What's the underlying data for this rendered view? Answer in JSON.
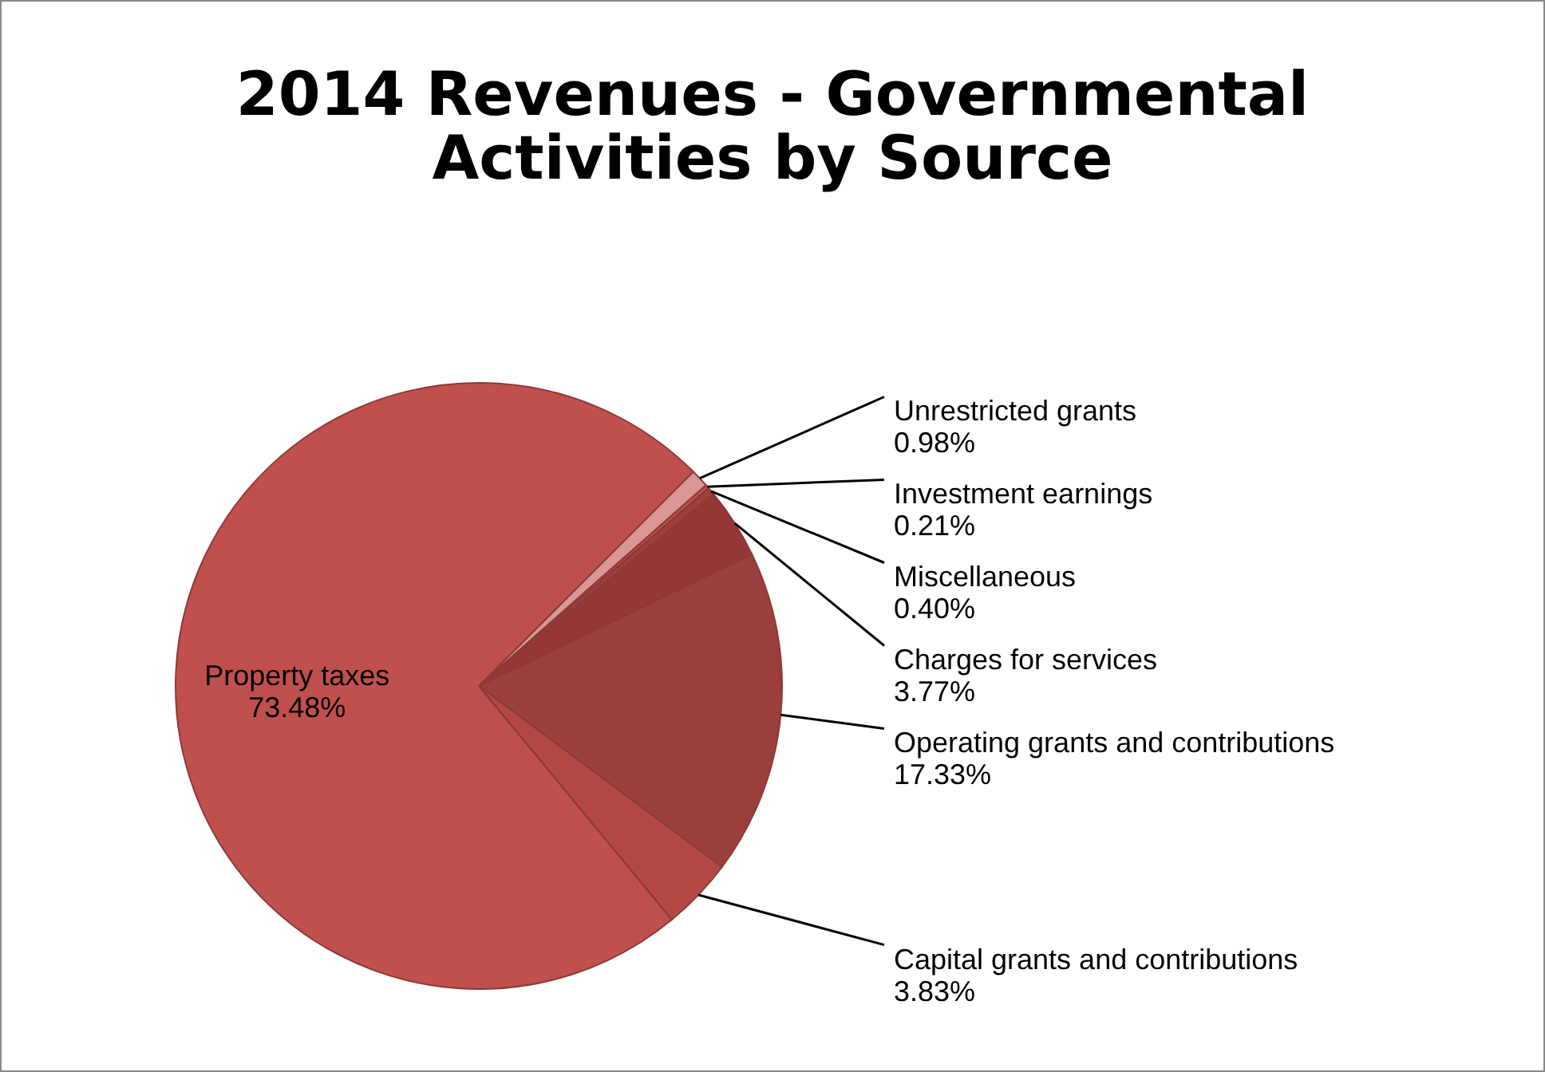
{
  "chart_data": {
    "type": "pie",
    "title": "2014 Revenues - Governmental Activities by Source",
    "categories": [
      "Unrestricted grants",
      "Investment earnings",
      "Miscellaneous",
      "Charges for services",
      "Operating grants and contributions",
      "Capital grants and contributions",
      "Property taxes"
    ],
    "values": [
      0.98,
      0.21,
      0.4,
      3.77,
      17.33,
      3.83,
      73.48
    ],
    "value_labels": [
      "0.98%",
      "0.21%",
      "0.40%",
      "3.77%",
      "17.33%",
      "3.83%",
      "73.48%"
    ],
    "colors": [
      "#d99694",
      "#c0504d",
      "#a03e3b",
      "#953735",
      "#9b3f3c",
      "#b54845",
      "#c0504d"
    ],
    "legend": false
  }
}
